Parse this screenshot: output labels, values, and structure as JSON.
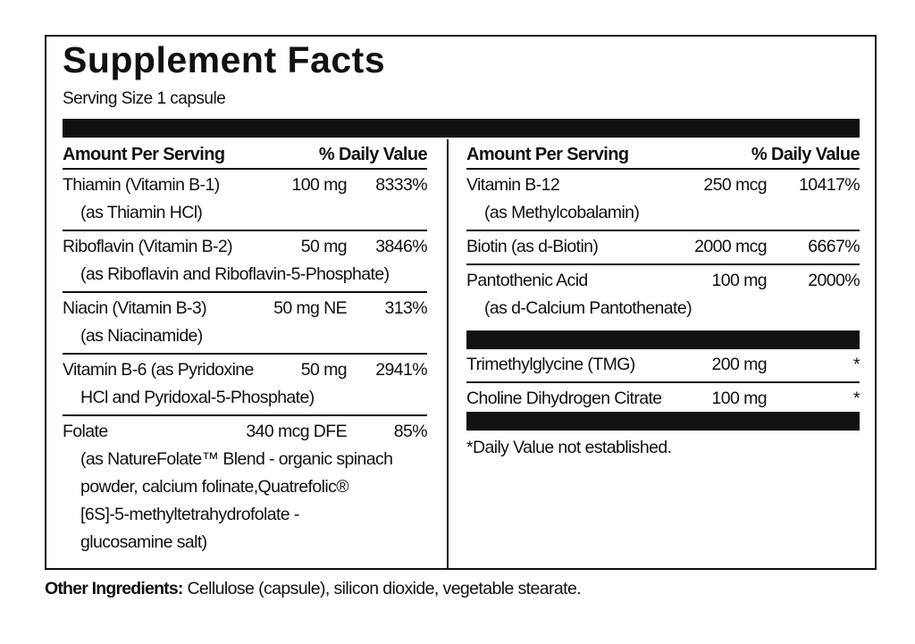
{
  "title": "Supplement Facts",
  "serving_size": "Serving Size 1 capsule",
  "header": {
    "amount": "Amount Per Serving",
    "dv": "% Daily Value"
  },
  "left_rows": [
    {
      "name": "Thiamin (Vitamin B-1)",
      "amount": "100 mg",
      "dv": "8333%",
      "sub": [
        "(as Thiamin HCl)"
      ]
    },
    {
      "name": "Riboflavin (Vitamin B-2)",
      "amount": "50 mg",
      "dv": "3846%",
      "sub": [
        "(as Riboflavin and Riboflavin-5-Phosphate)"
      ]
    },
    {
      "name": "Niacin (Vitamin B-3)",
      "amount": "50 mg NE",
      "dv": "313%",
      "sub": [
        "(as Niacinamide)"
      ]
    },
    {
      "name": "Vitamin B-6 (as Pyridoxine",
      "amount": "50 mg",
      "dv": "2941%",
      "sub": [
        "HCl and Pyridoxal-5-Phosphate)"
      ]
    },
    {
      "name": "Folate",
      "amount": "340 mcg DFE",
      "dv": "85%",
      "sub": [
        "(as NatureFolate™ Blend - organic spinach",
        "powder, calcium folinate,Quatrefolic®",
        "[6S]-5-methyltetrahydrofolate -",
        "glucosamine salt)"
      ]
    }
  ],
  "right_rows": [
    {
      "name": "Vitamin B-12",
      "amount": "250 mcg",
      "dv": "10417%",
      "sub": [
        "(as Methylcobalamin)"
      ]
    },
    {
      "name": "Biotin (as d-Biotin)",
      "amount": "2000 mcg",
      "dv": "6667%",
      "sub": []
    },
    {
      "name": "Pantothenic Acid",
      "amount": "100 mg",
      "dv": "2000%",
      "sub": [
        "(as d-Calcium Pantothenate)"
      ]
    }
  ],
  "right_rows_2": [
    {
      "name": "Trimethylglycine (TMG)",
      "amount": "200 mg",
      "dv": "*"
    },
    {
      "name": "Choline Dihydrogen Citrate",
      "amount": "100 mg",
      "dv": "*"
    }
  ],
  "footnote": "*Daily Value not established.",
  "other_ingredients": {
    "label": "Other Ingredients:",
    "text": " Cellulose (capsule), silicon dioxide, vegetable stearate."
  }
}
